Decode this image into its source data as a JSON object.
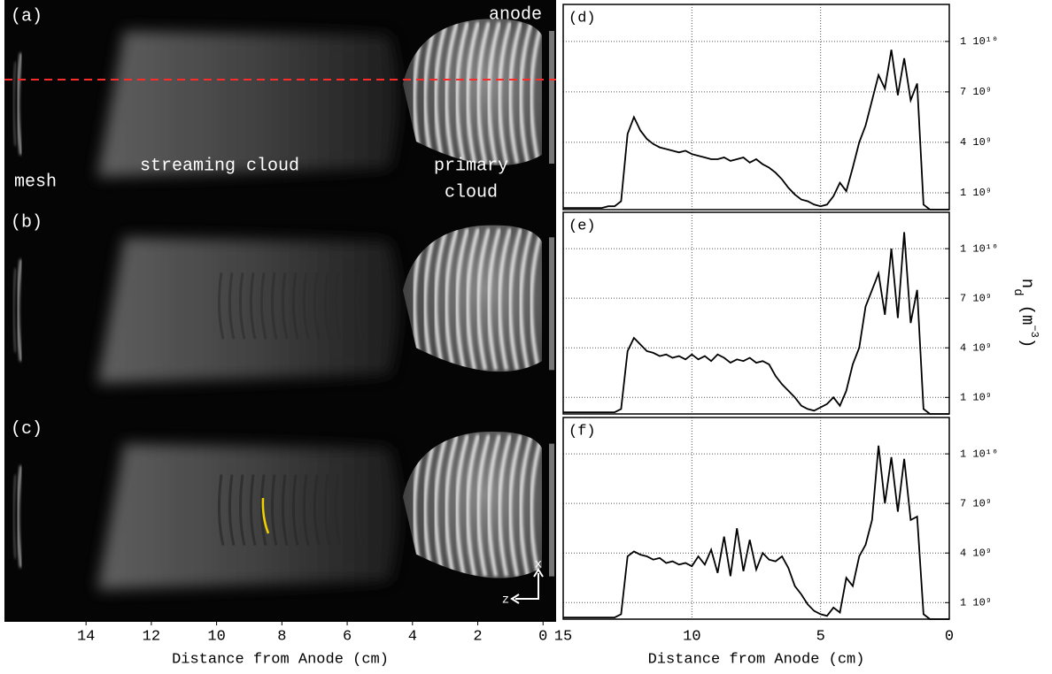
{
  "chart_data": [
    {
      "type": "image",
      "panels": [
        "(a)",
        "(b)",
        "(c)"
      ],
      "annotations": [
        "mesh",
        "streaming cloud",
        "primary",
        "cloud",
        "anode"
      ],
      "axis_labels": [
        "x",
        "z"
      ],
      "xlabel": "Distance from Anode (cm)",
      "xlim": [
        16.5,
        -0.4
      ],
      "xticks": [
        14,
        12,
        10,
        8,
        6,
        4,
        2,
        0
      ]
    },
    {
      "type": "line",
      "title": "(d)",
      "x": [
        15,
        14.75,
        14.5,
        14.25,
        14,
        13.75,
        13.5,
        13.25,
        13,
        12.75,
        12.5,
        12.25,
        12,
        11.75,
        11.5,
        11.25,
        11,
        10.75,
        10.5,
        10.25,
        10,
        9.75,
        9.5,
        9.25,
        9,
        8.75,
        8.5,
        8.25,
        8,
        7.75,
        7.5,
        7.25,
        7,
        6.75,
        6.5,
        6.25,
        6,
        5.75,
        5.5,
        5.25,
        5,
        4.75,
        4.5,
        4.25,
        4,
        3.75,
        3.5,
        3.25,
        3,
        2.75,
        2.5,
        2.25,
        2,
        1.75,
        1.5,
        1.25,
        1,
        0.75,
        0.5,
        0.25,
        0
      ],
      "values": [
        100000000.0,
        100000000.0,
        100000000.0,
        100000000.0,
        100000000.0,
        100000000.0,
        100000000.0,
        200000000.0,
        200000000.0,
        500000000.0,
        4500000000.0,
        5500000000.0,
        4700000000.0,
        4200000000.0,
        3900000000.0,
        3700000000.0,
        3600000000.0,
        3500000000.0,
        3400000000.0,
        3500000000.0,
        3300000000.0,
        3200000000.0,
        3100000000.0,
        3000000000.0,
        3000000000.0,
        3100000000.0,
        2900000000.0,
        3000000000.0,
        3100000000.0,
        2800000000.0,
        3000000000.0,
        2700000000.0,
        2500000000.0,
        2200000000.0,
        1800000000.0,
        1300000000.0,
        900000000.0,
        600000000.0,
        500000000.0,
        300000000.0,
        200000000.0,
        300000000.0,
        800000000.0,
        1600000000.0,
        1100000000.0,
        2500000000.0,
        4000000000.0,
        5000000000.0,
        6500000000.0,
        8000000000.0,
        7200000000.0,
        9500000000.0,
        6800000000.0,
        9000000000.0,
        6500000000.0,
        7500000000.0,
        300000000.0,
        0,
        0,
        0,
        0
      ],
      "color": "#000000",
      "xlim": [
        15,
        0
      ],
      "xticks": [
        15,
        10,
        5,
        0
      ],
      "ylim": [
        0,
        12200000000
      ],
      "yticks": [
        {
          "value": 1000000000,
          "label": "1 10⁹"
        },
        {
          "value": 4000000000,
          "label": "4 10⁹"
        },
        {
          "value": 7000000000,
          "label": "7 10⁹"
        },
        {
          "value": 10000000000,
          "label": "1 10¹⁰"
        }
      ],
      "grid": true
    },
    {
      "type": "line",
      "title": "(e)",
      "ylabel": [
        "n",
        "d",
        "(m",
        "−3",
        ")"
      ],
      "x": [
        15,
        14.75,
        14.5,
        14.25,
        14,
        13.75,
        13.5,
        13.25,
        13,
        12.75,
        12.5,
        12.25,
        12,
        11.75,
        11.5,
        11.25,
        11,
        10.75,
        10.5,
        10.25,
        10,
        9.75,
        9.5,
        9.25,
        9,
        8.75,
        8.5,
        8.25,
        8,
        7.75,
        7.5,
        7.25,
        7,
        6.75,
        6.5,
        6.25,
        6,
        5.75,
        5.5,
        5.25,
        5,
        4.75,
        4.5,
        4.25,
        4,
        3.75,
        3.5,
        3.25,
        3,
        2.75,
        2.5,
        2.25,
        2,
        1.75,
        1.5,
        1.25,
        1,
        0.75,
        0.5,
        0.25,
        0
      ],
      "values": [
        100000000.0,
        100000000.0,
        100000000.0,
        100000000.0,
        100000000.0,
        100000000.0,
        100000000.0,
        100000000.0,
        100000000.0,
        300000000.0,
        3800000000.0,
        4600000000.0,
        4200000000.0,
        3800000000.0,
        3700000000.0,
        3500000000.0,
        3600000000.0,
        3400000000.0,
        3500000000.0,
        3300000000.0,
        3600000000.0,
        3300000000.0,
        3500000000.0,
        3200000000.0,
        3600000000.0,
        3400000000.0,
        3100000000.0,
        3300000000.0,
        3200000000.0,
        3400000000.0,
        3100000000.0,
        3200000000.0,
        3000000000.0,
        2300000000.0,
        1800000000.0,
        1400000000.0,
        1000000000.0,
        500000000.0,
        300000000.0,
        200000000.0,
        400000000.0,
        600000000.0,
        1000000000.0,
        500000000.0,
        1400000000.0,
        3000000000.0,
        4000000000.0,
        6500000000.0,
        7500000000.0,
        8500000000.0,
        6000000000.0,
        10000000000.0,
        5800000000.0,
        11000000000.0,
        5500000000.0,
        7500000000.0,
        300000000.0,
        0,
        0,
        0,
        0
      ],
      "color": "#000000",
      "xlim": [
        15,
        0
      ],
      "xticks": [
        15,
        10,
        5,
        0
      ],
      "ylim": [
        0,
        12200000000
      ],
      "yticks": [
        {
          "value": 1000000000,
          "label": "1 10⁹"
        },
        {
          "value": 4000000000,
          "label": "4 10⁹"
        },
        {
          "value": 7000000000,
          "label": "7 10⁹"
        },
        {
          "value": 10000000000,
          "label": "1 10¹⁰"
        }
      ],
      "grid": true
    },
    {
      "type": "line",
      "title": "(f)",
      "xlabel": "Distance from Anode (cm)",
      "x": [
        15,
        14.75,
        14.5,
        14.25,
        14,
        13.75,
        13.5,
        13.25,
        13,
        12.75,
        12.5,
        12.25,
        12,
        11.75,
        11.5,
        11.25,
        11,
        10.75,
        10.5,
        10.25,
        10,
        9.75,
        9.5,
        9.25,
        9,
        8.75,
        8.5,
        8.25,
        8,
        7.75,
        7.5,
        7.25,
        7,
        6.75,
        6.5,
        6.25,
        6,
        5.75,
        5.5,
        5.25,
        5,
        4.75,
        4.5,
        4.25,
        4,
        3.75,
        3.5,
        3.25,
        3,
        2.75,
        2.5,
        2.25,
        2,
        1.75,
        1.5,
        1.25,
        1,
        0.75,
        0.5,
        0.25,
        0
      ],
      "values": [
        100000000.0,
        100000000.0,
        100000000.0,
        100000000.0,
        100000000.0,
        100000000.0,
        100000000.0,
        100000000.0,
        100000000.0,
        300000000.0,
        3800000000.0,
        4100000000.0,
        3900000000.0,
        3800000000.0,
        3600000000.0,
        3700000000.0,
        3400000000.0,
        3500000000.0,
        3300000000.0,
        3400000000.0,
        3200000000.0,
        3800000000.0,
        3300000000.0,
        4200000000.0,
        2800000000.0,
        5000000000.0,
        2600000000.0,
        5500000000.0,
        2900000000.0,
        4800000000.0,
        3000000000.0,
        4000000000.0,
        3600000000.0,
        3500000000.0,
        3800000000.0,
        3100000000.0,
        2000000000.0,
        1500000000.0,
        900000000.0,
        500000000.0,
        300000000.0,
        200000000.0,
        700000000.0,
        400000000.0,
        2500000000.0,
        2000000000.0,
        3800000000.0,
        4500000000.0,
        6000000000.0,
        10500000000.0,
        7000000000.0,
        9800000000.0,
        6500000000.0,
        9700000000.0,
        6000000000.0,
        6200000000.0,
        300000000.0,
        0,
        0,
        0,
        0
      ],
      "color": "#000000",
      "xlim": [
        15,
        0
      ],
      "xticks": [
        15,
        10,
        5,
        0
      ],
      "ylim": [
        0,
        12200000000
      ],
      "yticks": [
        {
          "value": 1000000000,
          "label": "1 10⁹"
        },
        {
          "value": 4000000000,
          "label": "4 10⁹"
        },
        {
          "value": 7000000000,
          "label": "7 10⁹"
        },
        {
          "value": 10000000000,
          "label": "1 10¹⁰"
        }
      ],
      "grid": true
    }
  ]
}
